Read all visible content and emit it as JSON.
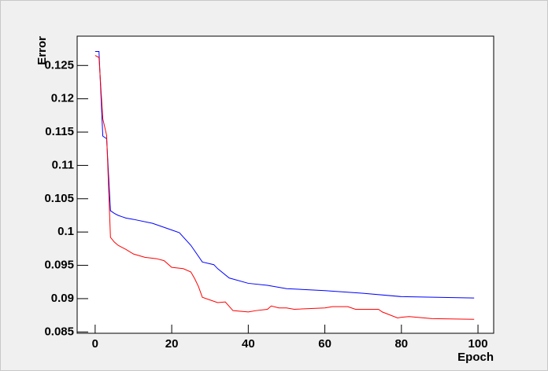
{
  "chart_data": {
    "type": "line",
    "x_label": "Epoch",
    "y_label": "Error",
    "xlim": [
      -4.7,
      104.1
    ],
    "ylim": [
      0.0848,
      0.1294
    ],
    "xticks": [
      0,
      20,
      40,
      60,
      80,
      100
    ],
    "yticks": [
      0.085,
      0.09,
      0.095,
      0.1,
      0.105,
      0.11,
      0.115,
      0.12,
      0.125
    ],
    "grid": false,
    "series": [
      {
        "color": "#0000ff",
        "x": [
          0,
          1,
          2,
          3,
          4,
          5,
          6,
          7,
          8,
          10,
          15,
          20,
          22,
          25,
          28,
          31,
          32,
          35,
          40,
          45,
          50,
          60,
          70,
          80,
          99
        ],
        "values": [
          0.1271,
          0.1271,
          0.1144,
          0.114,
          0.1032,
          0.1028,
          0.1025,
          0.1023,
          0.1021,
          0.1019,
          0.1013,
          0.1003,
          0.0999,
          0.098,
          0.0955,
          0.0951,
          0.0945,
          0.0931,
          0.0923,
          0.092,
          0.0915,
          0.0912,
          0.0908,
          0.0903,
          0.0901
        ]
      },
      {
        "color": "#ff0000",
        "x": [
          0,
          1,
          2,
          3,
          4,
          5,
          6,
          7,
          8,
          10,
          13,
          16,
          18,
          20,
          23,
          25,
          26,
          27,
          28,
          30,
          32,
          34,
          36,
          40,
          42,
          45,
          46,
          48,
          50,
          52,
          60,
          62,
          66,
          68,
          74,
          75,
          79,
          80,
          82,
          86,
          88,
          99
        ],
        "values": [
          0.1265,
          0.1262,
          0.117,
          0.1145,
          0.0992,
          0.0985,
          0.098,
          0.0977,
          0.0974,
          0.0967,
          0.0962,
          0.096,
          0.0957,
          0.0947,
          0.0945,
          0.094,
          0.093,
          0.0918,
          0.0902,
          0.0898,
          0.0894,
          0.0895,
          0.0882,
          0.088,
          0.0882,
          0.0884,
          0.0889,
          0.0886,
          0.0886,
          0.0884,
          0.0886,
          0.0888,
          0.0888,
          0.0884,
          0.0884,
          0.088,
          0.0871,
          0.0872,
          0.0873,
          0.0871,
          0.087,
          0.0869
        ]
      }
    ]
  }
}
